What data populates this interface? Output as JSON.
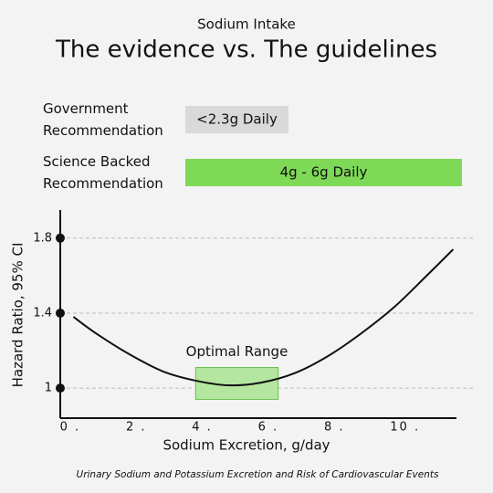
{
  "header": {
    "subtitle": "Sodium Intake",
    "title": "The evidence vs. The guidelines"
  },
  "recommendations": [
    {
      "label": "Government Recommendation",
      "value": "<2.3g Daily"
    },
    {
      "label": "Science Backed Recommendation",
      "value": "4g - 6g Daily"
    }
  ],
  "chart_data": {
    "type": "line",
    "x": [
      0.3,
      1,
      2,
      3,
      4,
      5,
      6,
      7,
      8,
      9,
      10,
      11,
      11.8
    ],
    "series": [
      {
        "name": "Hazard Ratio",
        "color": "#111111",
        "values": [
          1.38,
          1.29,
          1.18,
          1.09,
          1.04,
          1.015,
          1.03,
          1.08,
          1.17,
          1.29,
          1.43,
          1.6,
          1.74
        ]
      }
    ],
    "xlim": [
      -0.1,
      11.9
    ],
    "ylim": [
      0.84,
      1.95
    ],
    "xticks": [
      {
        "value": 0,
        "label": "0 ."
      },
      {
        "value": 2,
        "label": "2 ."
      },
      {
        "value": 4,
        "label": "4 ."
      },
      {
        "value": 6,
        "label": "6 ."
      },
      {
        "value": 8,
        "label": "8 ."
      },
      {
        "value": 10,
        "label": "10 ."
      }
    ],
    "yticks": [
      1,
      1.4,
      1.8
    ],
    "grid": true,
    "xlabel": "Sodium Excretion, g/day",
    "ylabel": "Hazard Ratio, 95% CI",
    "optimal_range": {
      "label": "Optimal Range",
      "x": [
        4,
        6.5
      ],
      "y": [
        0.94,
        1.11
      ],
      "color": "#b4e6a0"
    },
    "footnote": "Urinary Sodium and Potassium Excretion and Risk of Cardiovascular Events"
  }
}
